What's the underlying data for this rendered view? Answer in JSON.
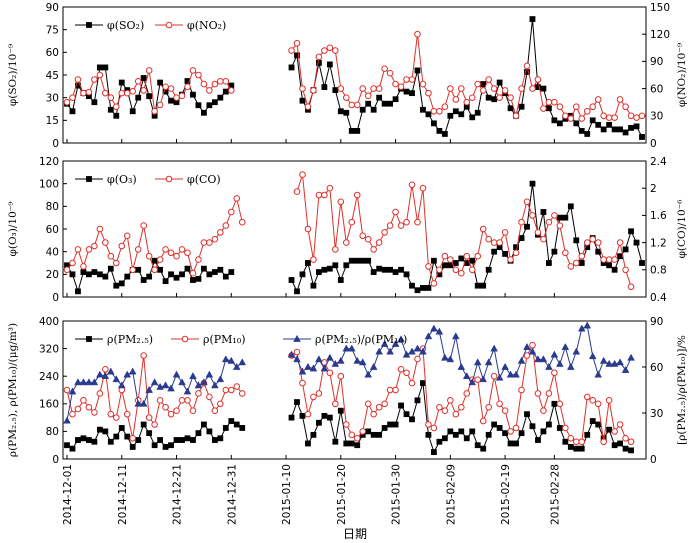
{
  "chart_data": [
    {
      "type": "line",
      "panel": "top",
      "ylabel": "φ(SO₂)/10⁻⁹",
      "ylabel_right": "φ(NO₂)/10⁻⁹",
      "ylim": [
        0,
        90
      ],
      "ylim_right": [
        0,
        150
      ],
      "yticks": [
        0,
        15,
        30,
        45,
        60,
        75,
        90
      ],
      "yticks_right": [
        0,
        30,
        60,
        90,
        120,
        150
      ],
      "legend": [
        "φ(SO₂)",
        "φ(NO₂)"
      ],
      "legend_position": "top-left",
      "series": [
        {
          "name": "φ(SO₂)",
          "axis": "left",
          "color": "#000000",
          "marker": "square",
          "values": [
            26,
            21,
            38,
            33,
            31,
            27,
            50,
            50,
            22,
            18,
            40,
            35,
            21,
            30,
            43,
            31,
            18,
            40,
            34,
            28,
            27,
            32,
            41,
            32,
            25,
            20,
            25,
            27,
            30,
            34,
            38,
            null,
            null,
            null,
            null,
            null,
            null,
            null,
            null,
            null,
            null,
            50,
            58,
            28,
            22,
            35,
            53,
            37,
            52,
            35,
            21,
            20,
            8,
            8,
            22,
            26,
            22,
            30,
            26,
            26,
            29,
            36,
            34,
            33,
            48,
            22,
            19,
            13,
            8,
            6,
            18,
            21,
            19,
            24,
            17,
            20,
            39,
            30,
            29,
            40,
            33,
            23,
            18,
            24,
            47,
            82,
            37,
            36,
            23,
            15,
            13,
            16,
            18,
            13,
            8,
            6,
            15,
            12,
            9,
            12,
            9,
            9,
            7,
            10,
            11,
            4
          ]
        },
        {
          "name": "φ(NO₂)",
          "axis": "right",
          "color": "#e0302a",
          "marker": "circle-open",
          "values": [
            45,
            50,
            70,
            55,
            56,
            70,
            75,
            55,
            50,
            40,
            55,
            55,
            57,
            68,
            58,
            80,
            35,
            42,
            62,
            60,
            50,
            52,
            62,
            80,
            75,
            65,
            58,
            65,
            68,
            68,
            58,
            null,
            null,
            null,
            null,
            null,
            null,
            null,
            null,
            null,
            null,
            102,
            110,
            60,
            40,
            58,
            95,
            102,
            105,
            102,
            60,
            50,
            42,
            42,
            60,
            52,
            60,
            60,
            82,
            77,
            65,
            62,
            70,
            70,
            120,
            65,
            55,
            35,
            35,
            40,
            60,
            48,
            60,
            45,
            50,
            65,
            58,
            70,
            60,
            50,
            58,
            50,
            30,
            60,
            85,
            60,
            70,
            38,
            45,
            45,
            40,
            30,
            27,
            40,
            27,
            35,
            40,
            48,
            30,
            28,
            28,
            48,
            40,
            30,
            28,
            30
          ]
        }
      ]
    },
    {
      "type": "line",
      "panel": "middle",
      "ylabel": "φ(O₃)/10⁻⁹",
      "ylabel_right": "φ(CO)/10⁻⁶",
      "ylim": [
        0,
        120
      ],
      "ylim_right": [
        0.4,
        2.4
      ],
      "yticks": [
        0,
        20,
        40,
        60,
        80,
        100,
        120
      ],
      "yticks_right": [
        0.4,
        0.8,
        1.2,
        1.6,
        2.0,
        2.4
      ],
      "legend": [
        "φ(O₃)",
        "φ(CO)"
      ],
      "legend_position": "top-left",
      "series": [
        {
          "name": "φ(O₃)",
          "axis": "left",
          "color": "#000000",
          "marker": "square",
          "values": [
            28,
            20,
            5,
            22,
            20,
            22,
            20,
            18,
            25,
            10,
            12,
            18,
            24,
            24,
            15,
            18,
            32,
            24,
            14,
            20,
            17,
            20,
            25,
            15,
            16,
            25,
            20,
            22,
            24,
            18,
            22,
            null,
            null,
            null,
            null,
            null,
            null,
            null,
            null,
            null,
            null,
            15,
            5,
            20,
            30,
            10,
            22,
            24,
            25,
            28,
            15,
            28,
            32,
            32,
            32,
            32,
            22,
            25,
            24,
            24,
            22,
            24,
            20,
            10,
            6,
            8,
            8,
            32,
            20,
            28,
            28,
            30,
            34,
            30,
            32,
            10,
            10,
            24,
            40,
            44,
            38,
            32,
            44,
            52,
            62,
            100,
            55,
            75,
            30,
            40,
            70,
            70,
            80,
            50,
            30,
            44,
            52,
            40,
            30,
            28,
            24,
            36,
            42,
            58,
            48,
            30
          ]
        },
        {
          "name": "φ(CO)",
          "axis": "right",
          "color": "#e0302a",
          "marker": "circle-open",
          "values": [
            0.8,
            0.9,
            1.1,
            0.85,
            1.1,
            1.15,
            1.4,
            1.2,
            1.0,
            0.9,
            1.15,
            1.3,
            0.8,
            1.1,
            1.45,
            1.0,
            0.8,
            0.95,
            1.1,
            1.05,
            1.0,
            1.1,
            1.05,
            0.75,
            0.95,
            1.2,
            1.2,
            1.25,
            1.35,
            1.45,
            1.65,
            1.85,
            1.5,
            null,
            null,
            null,
            null,
            null,
            null,
            null,
            null,
            null,
            1.95,
            2.2,
            1.4,
            0.95,
            1.9,
            1.9,
            2.0,
            1.1,
            1.8,
            1.2,
            1.5,
            1.9,
            1.3,
            1.25,
            1.1,
            1.2,
            1.35,
            1.45,
            1.65,
            1.45,
            1.5,
            2.05,
            1.5,
            2.0,
            0.85,
            0.6,
            0.8,
            1.0,
            0.95,
            0.8,
            0.75,
            1.0,
            0.8,
            1.0,
            1.4,
            1.25,
            1.2,
            1.2,
            1.35,
            0.95,
            1.05,
            1.5,
            1.8,
            1.6,
            1.35,
            1.25,
            1.5,
            1.6,
            1.45,
            1.05,
            0.85,
            0.9,
            1.0,
            1.2,
            1.25,
            1.2,
            0.95,
            0.95,
            0.95,
            1.2,
            0.8,
            0.55
          ]
        }
      ]
    },
    {
      "type": "line",
      "panel": "bottom",
      "ylabel": "ρ(PM₂.₅), ρ(PM₁₀)/(μg/m³)",
      "ylabel_right": "[ρ(PM₂.₅)/ρ(PM₁₀)]/%",
      "ylim": [
        0,
        400
      ],
      "ylim_right": [
        0,
        90
      ],
      "yticks": [
        0,
        80,
        160,
        240,
        320,
        400
      ],
      "yticks_right": [
        0,
        30,
        60,
        90
      ],
      "legend": [
        "ρ(PM₂.₅)",
        "ρ(PM₁₀)",
        "ρ(PM₂.₅)/ρ(PM₁₀)"
      ],
      "legend_position": "top",
      "x_tick_labels": [
        "2014-12-01",
        "2014-12-11",
        "2014-12-21",
        "2014-12-31",
        "2015-01-10",
        "2015-01-20",
        "2015-01-30",
        "2015-02-09",
        "2015-02-19",
        "2015-02-28"
      ],
      "xlabel": "日期",
      "series": [
        {
          "name": "ρ(PM₂.₅)",
          "axis": "left",
          "color": "#000000",
          "marker": "square",
          "values": [
            40,
            30,
            55,
            60,
            55,
            50,
            85,
            80,
            50,
            65,
            90,
            65,
            35,
            55,
            100,
            75,
            40,
            55,
            35,
            40,
            55,
            55,
            60,
            55,
            75,
            100,
            80,
            55,
            60,
            90,
            110,
            100,
            90,
            null,
            null,
            null,
            null,
            null,
            null,
            null,
            null,
            120,
            165,
            125,
            45,
            70,
            105,
            125,
            120,
            50,
            140,
            45,
            45,
            40,
            70,
            80,
            70,
            70,
            90,
            100,
            100,
            155,
            130,
            115,
            170,
            220,
            70,
            20,
            50,
            60,
            80,
            70,
            80,
            60,
            80,
            40,
            30,
            70,
            100,
            90,
            75,
            45,
            45,
            75,
            130,
            95,
            55,
            80,
            100,
            160,
            90,
            50,
            35,
            30,
            30,
            70,
            110,
            100,
            60,
            85,
            40,
            45,
            30,
            25
          ]
        },
        {
          "name": "ρ(PM₁₀)",
          "axis": "left",
          "color": "#e0302a",
          "marker": "circle-open",
          "values": [
            200,
            130,
            145,
            170,
            150,
            135,
            190,
            260,
            130,
            120,
            200,
            130,
            60,
            170,
            300,
            120,
            100,
            170,
            150,
            130,
            140,
            170,
            170,
            140,
            190,
            220,
            180,
            140,
            160,
            200,
            200,
            210,
            190,
            null,
            null,
            null,
            null,
            null,
            null,
            null,
            null,
            300,
            310,
            220,
            130,
            180,
            190,
            280,
            250,
            160,
            240,
            100,
            70,
            60,
            80,
            160,
            130,
            150,
            160,
            200,
            200,
            260,
            250,
            220,
            290,
            320,
            100,
            90,
            150,
            140,
            170,
            130,
            150,
            190,
            230,
            230,
            110,
            150,
            240,
            160,
            140,
            80,
            90,
            200,
            300,
            330,
            190,
            140,
            190,
            250,
            160,
            90,
            60,
            50,
            50,
            180,
            170,
            160,
            50,
            170,
            80,
            100,
            60,
            50
          ]
        },
        {
          "name": "ρ(PM₂.₅)/ρ(PM₁₀)",
          "axis": "right",
          "color": "#2a3a8f",
          "marker": "triangle",
          "values": [
            25,
            44,
            50,
            50,
            50,
            50,
            55,
            54,
            57,
            52,
            48,
            55,
            57,
            36,
            36,
            45,
            50,
            47,
            48,
            46,
            55,
            50,
            44,
            54,
            48,
            50,
            55,
            48,
            52,
            65,
            64,
            60,
            63,
            null,
            null,
            null,
            null,
            null,
            null,
            null,
            null,
            68,
            65,
            57,
            60,
            59,
            65,
            59,
            66,
            62,
            64,
            72,
            72,
            64,
            63,
            55,
            60,
            70,
            75,
            70,
            75,
            78,
            68,
            70,
            72,
            70,
            80,
            85,
            83,
            66,
            65,
            80,
            60,
            54,
            50,
            63,
            52,
            63,
            72,
            53,
            60,
            55,
            55,
            64,
            73,
            70,
            65,
            65,
            60,
            68,
            62,
            73,
            60,
            70,
            85,
            87,
            67,
            55,
            64,
            62,
            62,
            63,
            58,
            66
          ]
        }
      ]
    }
  ],
  "x_axis": {
    "label": "日期",
    "tick_labels": [
      "2014-12-01",
      "2014-12-11",
      "2014-12-21",
      "2014-12-31",
      "2015-01-10",
      "2015-01-20",
      "2015-01-30",
      "2015-02-09",
      "2015-02-19",
      "2015-02-28"
    ]
  }
}
